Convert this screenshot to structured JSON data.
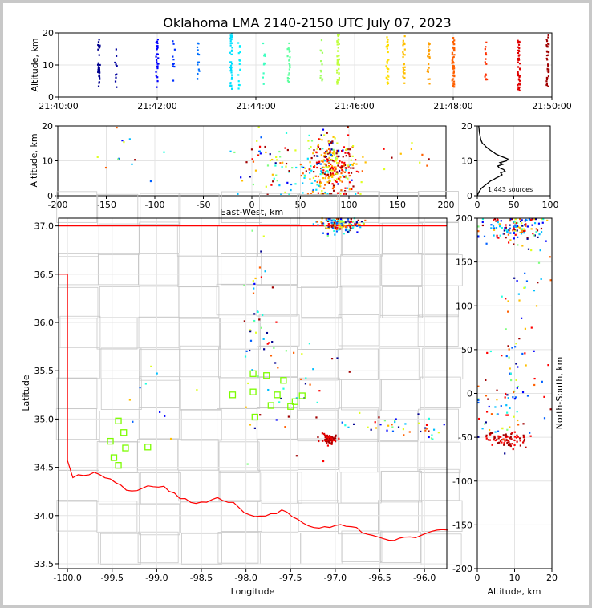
{
  "title": "Oklahoma LMA 2140-2150 UTC July 07, 2023",
  "source_count_label": "1,443 sources",
  "chart_data": [
    {
      "type": "scatter",
      "name_hint": "time-height",
      "xlabel": "",
      "ylabel": "Altitude, km",
      "x_ticks": [
        "21:40:00",
        "21:42:00",
        "21:44:00",
        "21:46:00",
        "21:48:00",
        "21:50:00"
      ],
      "xlim": [
        "21:40:00",
        "21:50:00"
      ],
      "ylim": [
        0,
        20
      ],
      "y_ticks": [
        0,
        10,
        20
      ],
      "grid": true,
      "point_columns": [
        {
          "time": "21:40:49",
          "alt_min": 3,
          "alt_max": 18,
          "n": 30,
          "color": "#00008f"
        },
        {
          "time": "21:41:10",
          "alt_min": 3,
          "alt_max": 17,
          "n": 10,
          "color": "#00009f"
        },
        {
          "time": "21:42:00",
          "alt_min": 3,
          "alt_max": 18,
          "n": 30,
          "color": "#0000ff"
        },
        {
          "time": "21:42:20",
          "alt_min": 5,
          "alt_max": 19,
          "n": 10,
          "color": "#0030ff"
        },
        {
          "time": "21:42:50",
          "alt_min": 4,
          "alt_max": 17,
          "n": 14,
          "color": "#0070ff"
        },
        {
          "time": "21:43:30",
          "alt_min": 2,
          "alt_max": 20,
          "n": 40,
          "color": "#00dfff"
        },
        {
          "time": "21:43:40",
          "alt_min": 2,
          "alt_max": 17,
          "n": 15,
          "color": "#00efff"
        },
        {
          "time": "21:44:10",
          "alt_min": 4,
          "alt_max": 17,
          "n": 10,
          "color": "#40ffc0"
        },
        {
          "time": "21:44:40",
          "alt_min": 4,
          "alt_max": 17,
          "n": 22,
          "color": "#60ff9f"
        },
        {
          "time": "21:45:20",
          "alt_min": 4,
          "alt_max": 19,
          "n": 12,
          "color": "#a0ff60"
        },
        {
          "time": "21:45:40",
          "alt_min": 4,
          "alt_max": 20,
          "n": 40,
          "color": "#c0ff40"
        },
        {
          "time": "21:46:40",
          "alt_min": 4,
          "alt_max": 19,
          "n": 30,
          "color": "#ffdf00"
        },
        {
          "time": "21:47:00",
          "alt_min": 4,
          "alt_max": 19,
          "n": 25,
          "color": "#ffbf00"
        },
        {
          "time": "21:47:30",
          "alt_min": 4,
          "alt_max": 17,
          "n": 20,
          "color": "#ff9f00"
        },
        {
          "time": "21:48:00",
          "alt_min": 3,
          "alt_max": 19,
          "n": 45,
          "color": "#ff6000"
        },
        {
          "time": "21:48:40",
          "alt_min": 3,
          "alt_max": 18,
          "n": 15,
          "color": "#ff3000"
        },
        {
          "time": "21:49:20",
          "alt_min": 2,
          "alt_max": 19,
          "n": 45,
          "color": "#df0000"
        },
        {
          "time": "21:49:55",
          "alt_min": 3,
          "alt_max": 20,
          "n": 35,
          "color": "#9f0000"
        }
      ]
    },
    {
      "type": "scatter",
      "name_hint": "east-west vs altitude",
      "xlabel": "East-West, km",
      "ylabel": "Altitude, km",
      "xlim": [
        -200,
        200
      ],
      "ylim": [
        0,
        20
      ],
      "x_ticks": [
        -200,
        -150,
        -100,
        -50,
        0,
        50,
        100,
        150,
        200
      ],
      "y_ticks": [
        0,
        10,
        20
      ],
      "grid": true,
      "clusters": [
        {
          "x": 85,
          "y": 8,
          "sx": 12,
          "sy": 4,
          "n": 220,
          "palette": "late"
        },
        {
          "x": 75,
          "y": 10,
          "sx": 10,
          "sy": 5,
          "n": 70,
          "palette": "mix"
        },
        {
          "x": 20,
          "y": 10,
          "sx": 20,
          "sy": 5,
          "n": 60,
          "palette": "mix"
        },
        {
          "x": 60,
          "y": 5,
          "sx": 25,
          "sy": 3,
          "n": 30,
          "palette": "cyan"
        },
        {
          "x": -125,
          "y": 13,
          "sx": 15,
          "sy": 3,
          "n": 12,
          "palette": "mix"
        },
        {
          "x": 165,
          "y": 12,
          "sx": 15,
          "sy": 3,
          "n": 10,
          "palette": "late"
        }
      ]
    },
    {
      "type": "line",
      "name_hint": "altitude histogram",
      "xlim": [
        0,
        100
      ],
      "ylim": [
        0,
        20
      ],
      "x_ticks": [
        0,
        50,
        100
      ],
      "y_ticks": [
        0,
        10,
        20
      ],
      "grid": true,
      "series": [
        {
          "x": [
            0,
            2,
            4,
            6,
            9,
            12,
            15,
            18,
            22,
            25,
            30,
            34,
            32,
            38,
            36,
            30,
            28,
            35,
            31,
            40,
            42,
            36,
            30,
            25,
            22,
            18,
            15,
            12,
            10,
            7,
            5,
            3,
            2
          ],
          "y": [
            0,
            1,
            1.6,
            2.2,
            2.7,
            3.2,
            3.7,
            4.2,
            4.6,
            5,
            5.5,
            6,
            6.5,
            7,
            7.5,
            8,
            8.5,
            9,
            9.5,
            10,
            10.5,
            11,
            11.5,
            12,
            12.5,
            13,
            13.5,
            14,
            14.5,
            15,
            16,
            18,
            20
          ]
        }
      ]
    },
    {
      "type": "scatter",
      "name_hint": "plan view",
      "xlabel": "Longitude",
      "ylabel": "Latitude",
      "xlim": [
        -100.1,
        -95.75
      ],
      "ylim": [
        33.45,
        37.08
      ],
      "x_ticks": [
        -100.0,
        -99.5,
        -99.0,
        -98.5,
        -98.0,
        -97.5,
        -97.0,
        -96.5,
        -96.0
      ],
      "y_ticks": [
        33.5,
        34.0,
        34.5,
        35.0,
        35.5,
        36.0,
        36.5,
        37.0
      ],
      "grid": true,
      "stations": [
        {
          "lon": -97.92,
          "lat": 35.47
        },
        {
          "lon": -97.77,
          "lat": 35.45
        },
        {
          "lon": -97.58,
          "lat": 35.4
        },
        {
          "lon": -98.15,
          "lat": 35.25
        },
        {
          "lon": -97.92,
          "lat": 35.28
        },
        {
          "lon": -97.65,
          "lat": 35.25
        },
        {
          "lon": -97.37,
          "lat": 35.24
        },
        {
          "lon": -97.45,
          "lat": 35.18
        },
        {
          "lon": -97.72,
          "lat": 35.14
        },
        {
          "lon": -97.5,
          "lat": 35.13
        },
        {
          "lon": -97.9,
          "lat": 35.02
        },
        {
          "lon": -99.43,
          "lat": 34.98
        },
        {
          "lon": -99.37,
          "lat": 34.86
        },
        {
          "lon": -99.52,
          "lat": 34.77
        },
        {
          "lon": -99.35,
          "lat": 34.7
        },
        {
          "lon": -99.1,
          "lat": 34.71
        },
        {
          "lon": -99.48,
          "lat": 34.6
        },
        {
          "lon": -99.43,
          "lat": 34.52
        }
      ],
      "clusters": [
        {
          "lon": -96.95,
          "lat": 37.02,
          "slon": 0.12,
          "slat": 0.05,
          "n": 160,
          "palette": "mix"
        },
        {
          "lon": -97.06,
          "lat": 34.79,
          "slon": 0.04,
          "slat": 0.025,
          "n": 70,
          "palette": "red"
        },
        {
          "lon": -97.88,
          "lat": 36.0,
          "slon": 0.08,
          "slat": 0.5,
          "n": 35,
          "palette": "mix"
        },
        {
          "lon": -97.5,
          "lat": 35.4,
          "slon": 0.35,
          "slat": 0.35,
          "n": 40,
          "palette": "mix"
        },
        {
          "lon": -96.4,
          "lat": 34.95,
          "slon": 0.3,
          "slat": 0.05,
          "n": 25,
          "palette": "mix"
        },
        {
          "lon": -95.95,
          "lat": 34.85,
          "slon": 0.12,
          "slat": 0.05,
          "n": 15,
          "palette": "mix"
        },
        {
          "lon": -98.9,
          "lat": 35.2,
          "slon": 0.3,
          "slat": 0.3,
          "n": 10,
          "palette": "mix"
        }
      ]
    },
    {
      "type": "scatter",
      "name_hint": "north-south vs altitude",
      "xlabel": "Altitude, km",
      "ylabel": "North-South, km",
      "xlim": [
        0,
        20
      ],
      "ylim": [
        -200,
        200
      ],
      "x_ticks": [
        0,
        10,
        20
      ],
      "y_ticks": [
        -200,
        -150,
        -100,
        -50,
        0,
        50,
        100,
        150,
        200
      ],
      "grid": true,
      "clusters": [
        {
          "x": 10,
          "y": 190,
          "sx": 4,
          "sy": 8,
          "n": 130,
          "palette": "mix"
        },
        {
          "x": 8,
          "y": -53,
          "sx": 3,
          "sy": 4,
          "n": 70,
          "palette": "red"
        },
        {
          "x": 9,
          "y": 60,
          "sx": 3,
          "sy": 45,
          "n": 40,
          "palette": "mix"
        },
        {
          "x": 8,
          "y": -20,
          "sx": 5,
          "sy": 30,
          "n": 60,
          "palette": "mix"
        },
        {
          "x": 14,
          "y": 140,
          "sx": 3,
          "sy": 25,
          "n": 15,
          "palette": "mix"
        }
      ]
    }
  ],
  "colormap": [
    "#00008f",
    "#0000ff",
    "#0060ff",
    "#00bfff",
    "#20ffdf",
    "#80ff80",
    "#dfff20",
    "#ffbf00",
    "#ff6000",
    "#ff0000",
    "#9f0000"
  ],
  "station_color": "#7cfc00",
  "border_color": "#ff0000",
  "county_color": "#c8c8c8"
}
